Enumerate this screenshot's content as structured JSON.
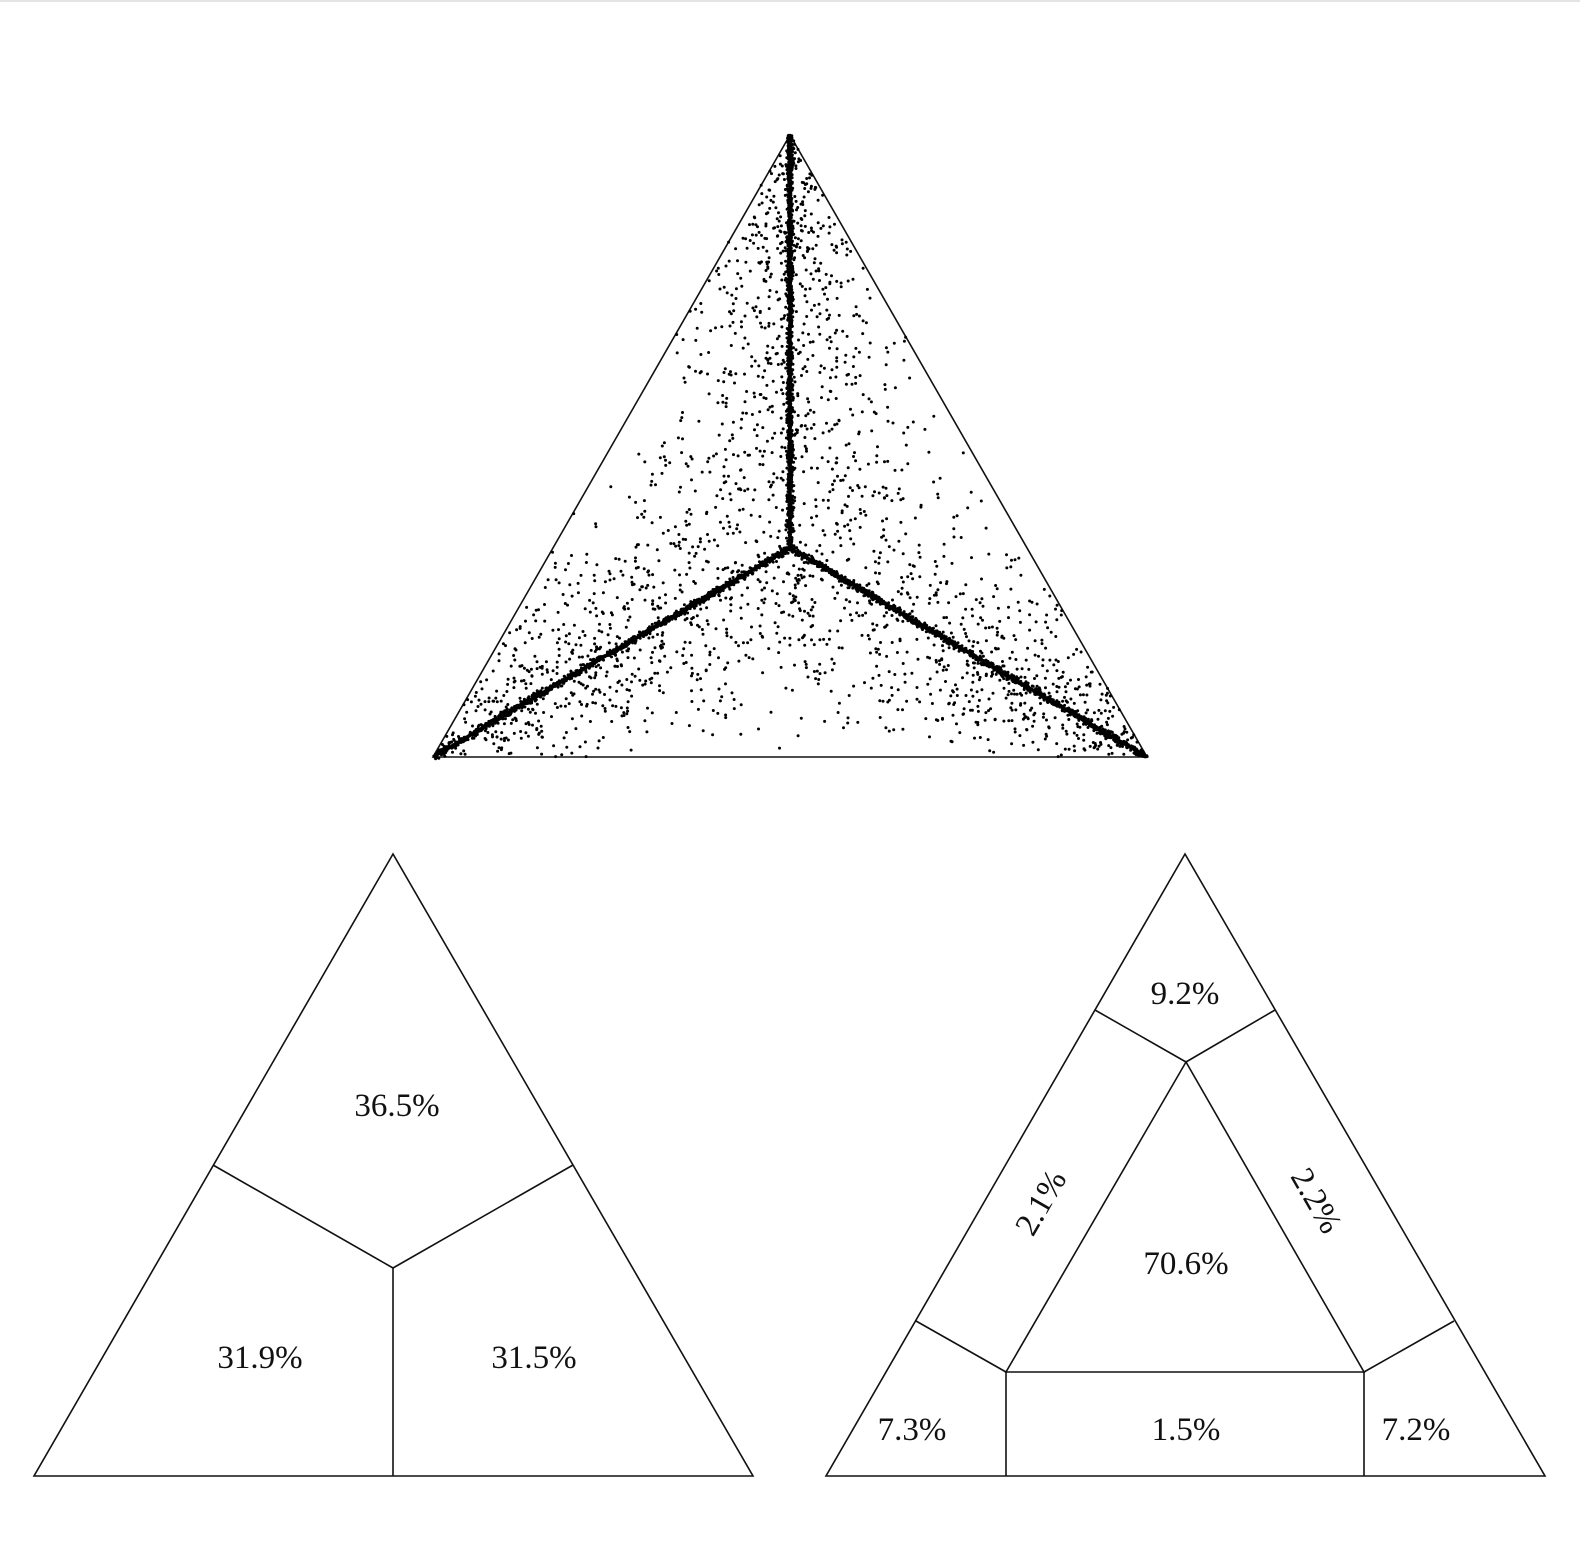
{
  "chart_data": [
    {
      "type": "scatter",
      "description_ref": "ternary-simplex-points",
      "title": "",
      "grid": false,
      "point_color": "#000000",
      "generation": {
        "n_background_points": 2600,
        "n_axis_points_per_spine": 1100,
        "seed": 7
      }
    },
    {
      "type": "partition",
      "regions": [
        {
          "id": "top",
          "label": "36.5%",
          "value": 36.5
        },
        {
          "id": "bottom-left",
          "label": "31.9%",
          "value": 31.9
        },
        {
          "id": "bottom-right",
          "label": "31.5%",
          "value": 31.5
        }
      ]
    },
    {
      "type": "partition",
      "regions": [
        {
          "id": "top-corner",
          "label": "9.2%",
          "value": 9.2
        },
        {
          "id": "left-strip",
          "label": "2.1%",
          "value": 2.1
        },
        {
          "id": "right-strip",
          "label": "2.2%",
          "value": 2.2
        },
        {
          "id": "center",
          "label": "70.6%",
          "value": 70.6
        },
        {
          "id": "bottom-left-corner",
          "label": "7.3%",
          "value": 7.3
        },
        {
          "id": "bottom-strip",
          "label": "1.5%",
          "value": 1.5
        },
        {
          "id": "bottom-right-corner",
          "label": "7.2%",
          "value": 7.2
        }
      ]
    }
  ],
  "colors": {
    "stroke": "#111111",
    "background": "#ffffff"
  }
}
